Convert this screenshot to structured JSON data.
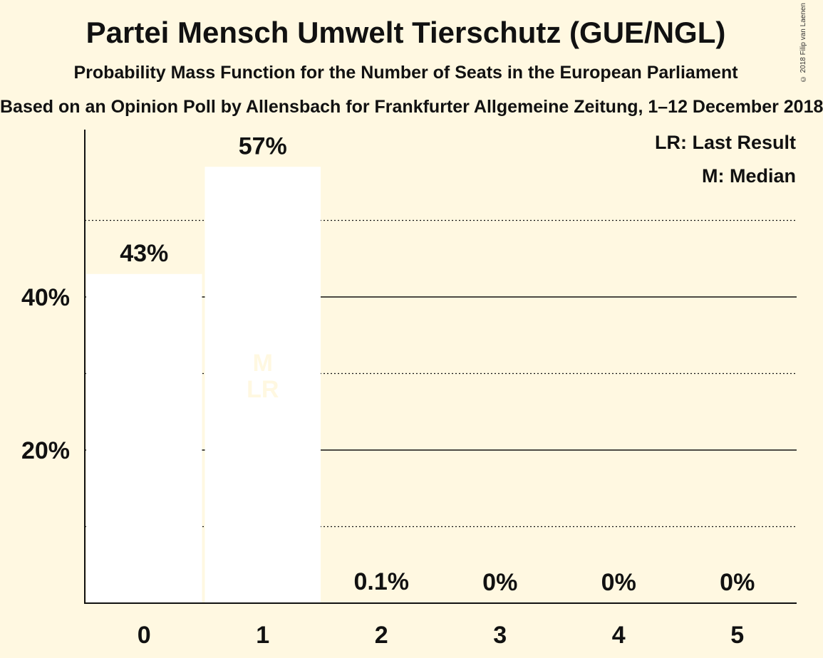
{
  "chart_data": {
    "type": "bar",
    "title": "Partei Mensch Umwelt Tierschutz (GUE/NGL)",
    "subtitle": "Probability Mass Function for the Number of Seats in the European Parliament",
    "source": "Based on an Opinion Poll by Allensbach for Frankfurter Allgemeine Zeitung, 1–12 December 2018",
    "copyright": "© 2018 Filip van Laenen",
    "categories": [
      "0",
      "1",
      "2",
      "3",
      "4",
      "5"
    ],
    "values": [
      43,
      57,
      0.1,
      0,
      0,
      0
    ],
    "value_labels": [
      "43%",
      "57%",
      "0.1%",
      "0%",
      "0%",
      "0%"
    ],
    "ylim": [
      0,
      62
    ],
    "y_ticks": [
      {
        "value": 20,
        "label": "20%",
        "style": "solid"
      },
      {
        "value": 40,
        "label": "40%",
        "style": "solid"
      }
    ],
    "minor_gridlines": [
      10,
      30,
      50
    ],
    "median_seat": "1",
    "last_result_seat": "1",
    "bar_markers": [
      "M",
      "LR"
    ],
    "legend": [
      "LR: Last Result",
      "M: Median"
    ],
    "legend_position": "top-right",
    "colors": {
      "background": "#fff8e1",
      "bar": "#ffffff",
      "marker_text": "#fff8e1",
      "text": "#111111"
    }
  }
}
